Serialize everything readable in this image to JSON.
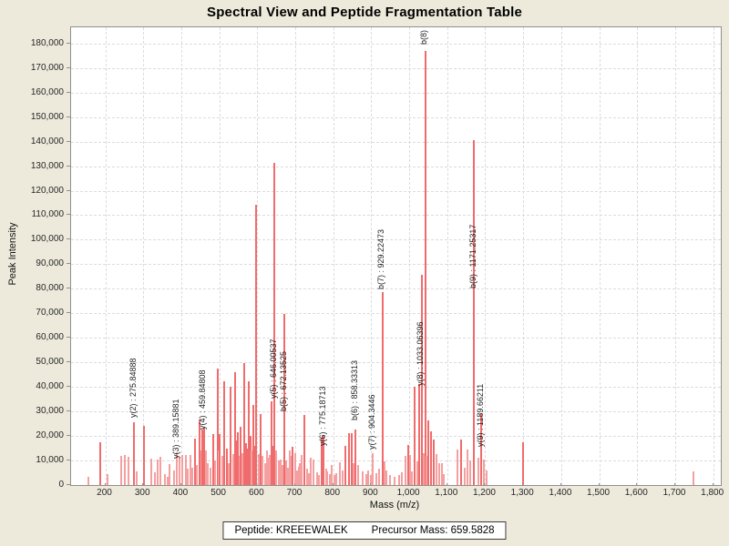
{
  "title": "Spectral View and Peptide Fragmentation Table",
  "footer": {
    "peptide": "Peptide: KREEEWALEK",
    "precursor": "Precursor Mass: 659.5828"
  },
  "colors": {
    "background": "#edeadc",
    "plot_background": "#ffffff",
    "gridline": "#dcdcdc",
    "plot_border": "#8f8f8f",
    "peak_strong": "#f06c6c",
    "peak_light": "#f5a0a0",
    "text": "#1c1c1c"
  },
  "chart_data": {
    "type": "bar",
    "subtype": "mass-spectrum-stick-plot",
    "title": "Spectral View and Peptide Fragmentation Table",
    "xlabel": "Mass (m/z)",
    "ylabel": "Peak Intensity",
    "xlim": [
      110,
      1820
    ],
    "ylim": [
      0,
      186600
    ],
    "grid": "dashed",
    "x_ticks": [
      {
        "v": 200,
        "label": "200"
      },
      {
        "v": 300,
        "label": "300"
      },
      {
        "v": 400,
        "label": "400"
      },
      {
        "v": 500,
        "label": "500"
      },
      {
        "v": 600,
        "label": "600"
      },
      {
        "v": 700,
        "label": "700"
      },
      {
        "v": 800,
        "label": "800"
      },
      {
        "v": 900,
        "label": "900"
      },
      {
        "v": 1000,
        "label": "1,000"
      },
      {
        "v": 1100,
        "label": "1,100"
      },
      {
        "v": 1200,
        "label": "1,200"
      },
      {
        "v": 1300,
        "label": "1,300"
      },
      {
        "v": 1400,
        "label": "1,400"
      },
      {
        "v": 1500,
        "label": "1,500"
      },
      {
        "v": 1600,
        "label": "1,600"
      },
      {
        "v": 1700,
        "label": "1,700"
      },
      {
        "v": 1800,
        "label": "1,800"
      }
    ],
    "y_ticks": [
      {
        "v": 0,
        "label": "0"
      },
      {
        "v": 10000,
        "label": "10,000"
      },
      {
        "v": 20000,
        "label": "20,000"
      },
      {
        "v": 30000,
        "label": "30,000"
      },
      {
        "v": 40000,
        "label": "40,000"
      },
      {
        "v": 50000,
        "label": "50,000"
      },
      {
        "v": 60000,
        "label": "60,000"
      },
      {
        "v": 70000,
        "label": "70,000"
      },
      {
        "v": 80000,
        "label": "80,000"
      },
      {
        "v": 90000,
        "label": "90,000"
      },
      {
        "v": 100000,
        "label": "100,000"
      },
      {
        "v": 110000,
        "label": "110,000"
      },
      {
        "v": 120000,
        "label": "120,000"
      },
      {
        "v": 130000,
        "label": "130,000"
      },
      {
        "v": 140000,
        "label": "140,000"
      },
      {
        "v": 150000,
        "label": "150,000"
      },
      {
        "v": 160000,
        "label": "160,000"
      },
      {
        "v": 170000,
        "label": "170,000"
      },
      {
        "v": 180000,
        "label": "180,000"
      }
    ],
    "annotations": [
      {
        "text": "y(2) : 275.84888",
        "mz": 275.84888,
        "base": 27300
      },
      {
        "text": "y(3) : 389.15881",
        "mz": 389.15881,
        "base": 10900
      },
      {
        "text": "y(4) : 459.84808",
        "mz": 459.84808,
        "base": 22800
      },
      {
        "text": "y(5) : 646.00537",
        "mz": 646.00537,
        "base": 35100
      },
      {
        "text": "b(5) : 672.13525",
        "mz": 672.13525,
        "base": 30200
      },
      {
        "text": "y(6) : 775.18713",
        "mz": 775.18713,
        "base": 16100
      },
      {
        "text": "b(6) : 858.33313",
        "mz": 858.33313,
        "base": 26500
      },
      {
        "text": "y(7) : 904.3446",
        "mz": 904.3446,
        "base": 14300
      },
      {
        "text": "b(7) : 929.22473",
        "mz": 929.22473,
        "base": 79800
      },
      {
        "text": "y(8) : 1033.06396",
        "mz": 1033.06396,
        "base": 40300
      },
      {
        "text": "b(8)",
        "mz": 1042.5,
        "base": 179500
      },
      {
        "text": "b(9) : 1171.25317",
        "mz": 1171.25317,
        "base": 80300
      },
      {
        "text": "y(9) : 1189.66211",
        "mz": 1189.66211,
        "base": 15400
      }
    ],
    "peaks": [
      [
        155,
        3200
      ],
      [
        186,
        17400
      ],
      [
        206,
        4300
      ],
      [
        242,
        11700
      ],
      [
        252,
        12100
      ],
      [
        262,
        11400
      ],
      [
        275.84888,
        25500
      ],
      [
        283,
        5500
      ],
      [
        302,
        24000
      ],
      [
        322,
        10600
      ],
      [
        330,
        5200
      ],
      [
        338,
        10400
      ],
      [
        346,
        11400
      ],
      [
        358,
        4300
      ],
      [
        365,
        3500
      ],
      [
        370,
        8400
      ],
      [
        381,
        6000
      ],
      [
        389.15881,
        13200
      ],
      [
        396,
        11200
      ],
      [
        403,
        12400
      ],
      [
        411,
        12200
      ],
      [
        417,
        6500
      ],
      [
        423,
        12300
      ],
      [
        429,
        7000
      ],
      [
        435,
        18900
      ],
      [
        441,
        8200
      ],
      [
        447,
        26200
      ],
      [
        452,
        14000
      ],
      [
        455,
        22500
      ],
      [
        459.84808,
        23400
      ],
      [
        465,
        14000
      ],
      [
        470,
        9000
      ],
      [
        476,
        7000
      ],
      [
        483,
        20800
      ],
      [
        489,
        10000
      ],
      [
        495,
        47400
      ],
      [
        499,
        14000
      ],
      [
        502,
        20700
      ],
      [
        508,
        12000
      ],
      [
        514,
        42300
      ],
      [
        519,
        15000
      ],
      [
        524,
        9000
      ],
      [
        530,
        40000
      ],
      [
        536,
        12500
      ],
      [
        542,
        46000
      ],
      [
        546,
        18000
      ],
      [
        550,
        21500
      ],
      [
        554,
        12000
      ],
      [
        557,
        23600
      ],
      [
        561,
        13000
      ],
      [
        566,
        49600
      ],
      [
        570,
        17000
      ],
      [
        574,
        15000
      ],
      [
        578,
        42200
      ],
      [
        582,
        20000
      ],
      [
        586,
        14000
      ],
      [
        590,
        32700
      ],
      [
        594,
        16000
      ],
      [
        598,
        114400
      ],
      [
        604,
        12500
      ],
      [
        610,
        28900
      ],
      [
        614,
        12000
      ],
      [
        620,
        9000
      ],
      [
        625,
        14200
      ],
      [
        630,
        11000
      ],
      [
        634,
        12300
      ],
      [
        638,
        34000
      ],
      [
        642,
        16000
      ],
      [
        646.00537,
        131500
      ],
      [
        650,
        14000
      ],
      [
        656,
        10000
      ],
      [
        661,
        10500
      ],
      [
        666,
        8000
      ],
      [
        672.13525,
        69900
      ],
      [
        677,
        10000
      ],
      [
        681,
        7000
      ],
      [
        685,
        14200
      ],
      [
        689,
        12000
      ],
      [
        693,
        15400
      ],
      [
        700,
        12900
      ],
      [
        705,
        6000
      ],
      [
        709,
        7300
      ],
      [
        713,
        9000
      ],
      [
        717,
        12300
      ],
      [
        725,
        28400
      ],
      [
        731,
        6500
      ],
      [
        736,
        5000
      ],
      [
        741,
        11100
      ],
      [
        749,
        10500
      ],
      [
        757,
        5200
      ],
      [
        763,
        4000
      ],
      [
        769,
        19300
      ],
      [
        775.18713,
        20000
      ],
      [
        781,
        6500
      ],
      [
        785,
        5500
      ],
      [
        791,
        4500
      ],
      [
        797,
        8000
      ],
      [
        803,
        4000
      ],
      [
        808,
        5000
      ],
      [
        817,
        9200
      ],
      [
        825,
        6000
      ],
      [
        833,
        16000
      ],
      [
        841,
        21000
      ],
      [
        849,
        21000
      ],
      [
        853,
        9000
      ],
      [
        858.33313,
        22800
      ],
      [
        866,
        8000
      ],
      [
        877,
        5500
      ],
      [
        886,
        4500
      ],
      [
        893,
        6100
      ],
      [
        899,
        4000
      ],
      [
        904.3446,
        12900
      ],
      [
        913,
        5000
      ],
      [
        921,
        6800
      ],
      [
        929.22473,
        78600
      ],
      [
        935,
        9500
      ],
      [
        941,
        6100
      ],
      [
        950,
        4200
      ],
      [
        962,
        3500
      ],
      [
        973,
        4200
      ],
      [
        981,
        5200
      ],
      [
        989,
        12000
      ],
      [
        997,
        16300
      ],
      [
        1003,
        12300
      ],
      [
        1008,
        5500
      ],
      [
        1014,
        40200
      ],
      [
        1021,
        9500
      ],
      [
        1027,
        41300
      ],
      [
        1033.06396,
        85800
      ],
      [
        1038,
        13000
      ],
      [
        1042.5,
        177000
      ],
      [
        1046,
        12000
      ],
      [
        1050,
        26300
      ],
      [
        1057,
        22000
      ],
      [
        1064,
        18400
      ],
      [
        1071,
        12700
      ],
      [
        1078,
        9000
      ],
      [
        1085,
        9000
      ],
      [
        1092,
        4500
      ],
      [
        1128,
        14300
      ],
      [
        1137,
        18500
      ],
      [
        1145,
        7000
      ],
      [
        1153,
        14300
      ],
      [
        1160,
        10000
      ],
      [
        1171.25317,
        140500
      ],
      [
        1183,
        11000
      ],
      [
        1189.66211,
        29000
      ],
      [
        1196,
        10400
      ],
      [
        1204,
        6000
      ],
      [
        1299,
        17300
      ],
      [
        1747,
        5600
      ]
    ]
  }
}
